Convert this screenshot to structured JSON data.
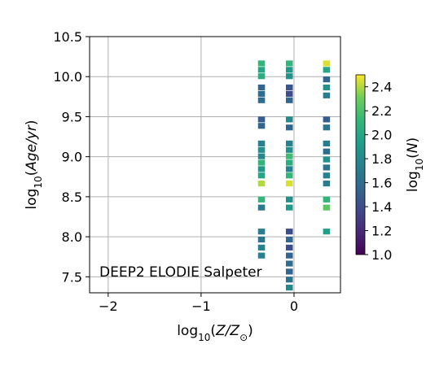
{
  "chart_data": {
    "type": "heatmap",
    "title": "",
    "xlabel": {
      "pre": "log",
      "sub": "10",
      "mid": "(",
      "italic": "Z/Z",
      "sunsub": "⊙",
      "post": ")"
    },
    "ylabel": {
      "pre": "log",
      "sub": "10",
      "mid": "(",
      "italic": "Age/yr",
      "post": ")"
    },
    "xlim": [
      -2.2,
      0.5
    ],
    "ylim": [
      7.3,
      10.5
    ],
    "xticks": [
      -2,
      -1,
      0
    ],
    "xtick_labels": [
      "−2",
      "−1",
      "0"
    ],
    "yticks": [
      7.5,
      8.0,
      8.5,
      9.0,
      9.5,
      10.0,
      10.5
    ],
    "ytick_labels": [
      "7.5",
      "8.0",
      "8.5",
      "9.0",
      "9.5",
      "10.0",
      "10.5"
    ],
    "grid": true,
    "annotation": "DEEP2 ELODIE Salpeter",
    "colorbar": {
      "label": {
        "pre": "log",
        "sub": "10",
        "mid": "(",
        "italic": "N",
        "post": ")"
      },
      "range": [
        1.0,
        2.5
      ],
      "ticks": [
        1.0,
        1.2,
        1.4,
        1.6,
        1.8,
        2.0,
        2.2,
        2.4
      ],
      "tick_labels": [
        "1.0",
        "1.2",
        "1.4",
        "1.6",
        "1.8",
        "2.0",
        "2.2",
        "2.4"
      ],
      "colormap": "viridis"
    },
    "cell_width_dex": 0.075,
    "cell_height_dex": 0.083,
    "columns": [
      {
        "x": -0.35,
        "cells": [
          {
            "y": 10.16,
            "v": 2.1
          },
          {
            "y": 10.08,
            "v": 2.0
          },
          {
            "y": 10.0,
            "v": 2.05
          },
          {
            "y": 9.86,
            "v": 1.55
          },
          {
            "y": 9.78,
            "v": 1.6
          },
          {
            "y": 9.7,
            "v": 1.6
          },
          {
            "y": 9.46,
            "v": 1.5
          },
          {
            "y": 9.38,
            "v": 1.55
          },
          {
            "y": 9.16,
            "v": 1.75
          },
          {
            "y": 9.08,
            "v": 1.85
          },
          {
            "y": 9.0,
            "v": 1.8
          },
          {
            "y": 8.92,
            "v": 2.1
          },
          {
            "y": 8.84,
            "v": 1.9
          },
          {
            "y": 8.76,
            "v": 2.0
          },
          {
            "y": 8.66,
            "v": 2.4
          },
          {
            "y": 8.46,
            "v": 2.1
          },
          {
            "y": 8.36,
            "v": 1.7
          },
          {
            "y": 8.06,
            "v": 1.7
          },
          {
            "y": 7.96,
            "v": 1.65
          },
          {
            "y": 7.86,
            "v": 1.75
          },
          {
            "y": 7.76,
            "v": 1.75
          }
        ]
      },
      {
        "x": -0.05,
        "cells": [
          {
            "y": 10.16,
            "v": 2.1
          },
          {
            "y": 10.08,
            "v": 1.9
          },
          {
            "y": 10.0,
            "v": 1.85
          },
          {
            "y": 9.86,
            "v": 1.45
          },
          {
            "y": 9.78,
            "v": 1.4
          },
          {
            "y": 9.7,
            "v": 1.55
          },
          {
            "y": 9.46,
            "v": 1.8
          },
          {
            "y": 9.36,
            "v": 1.55
          },
          {
            "y": 9.16,
            "v": 1.75
          },
          {
            "y": 9.08,
            "v": 1.85
          },
          {
            "y": 9.0,
            "v": 2.15
          },
          {
            "y": 8.92,
            "v": 2.05
          },
          {
            "y": 8.84,
            "v": 1.75
          },
          {
            "y": 8.76,
            "v": 2.1
          },
          {
            "y": 8.66,
            "v": 2.45
          },
          {
            "y": 8.46,
            "v": 1.85
          },
          {
            "y": 8.36,
            "v": 1.9
          },
          {
            "y": 8.06,
            "v": 1.4
          },
          {
            "y": 7.96,
            "v": 1.55
          },
          {
            "y": 7.86,
            "v": 1.4
          },
          {
            "y": 7.76,
            "v": 1.55
          },
          {
            "y": 7.66,
            "v": 1.6
          },
          {
            "y": 7.56,
            "v": 1.55
          },
          {
            "y": 7.46,
            "v": 1.65
          },
          {
            "y": 7.36,
            "v": 1.8
          }
        ]
      },
      {
        "x": 0.35,
        "cells": [
          {
            "y": 10.16,
            "v": 2.45
          },
          {
            "y": 10.08,
            "v": 2.0
          },
          {
            "y": 9.96,
            "v": 1.55
          },
          {
            "y": 9.86,
            "v": 1.85
          },
          {
            "y": 9.76,
            "v": 1.7
          },
          {
            "y": 9.46,
            "v": 1.5
          },
          {
            "y": 9.36,
            "v": 1.65
          },
          {
            "y": 9.16,
            "v": 1.7
          },
          {
            "y": 9.06,
            "v": 1.6
          },
          {
            "y": 8.96,
            "v": 1.85
          },
          {
            "y": 8.86,
            "v": 1.65
          },
          {
            "y": 8.76,
            "v": 1.75
          },
          {
            "y": 8.66,
            "v": 1.7
          },
          {
            "y": 8.46,
            "v": 2.1
          },
          {
            "y": 8.36,
            "v": 2.25
          },
          {
            "y": 8.06,
            "v": 1.95
          }
        ]
      }
    ]
  }
}
